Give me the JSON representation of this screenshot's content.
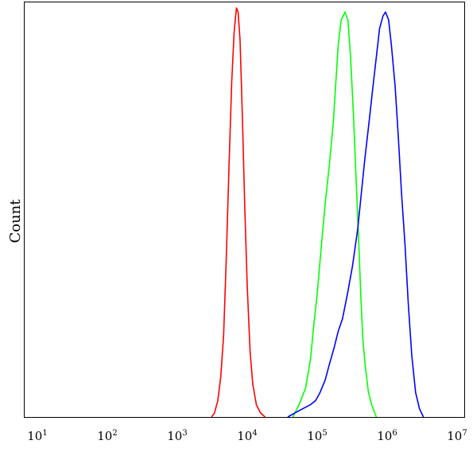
{
  "chart_data": {
    "type": "line",
    "title": "",
    "xlabel": "",
    "ylabel": "Count",
    "x_scale": "log",
    "x_range": [
      10,
      10000000
    ],
    "y_range": [
      0,
      100
    ],
    "grid": false,
    "legend": "none",
    "x_ticks": [
      {
        "value": 10,
        "base": "10",
        "exp": "1"
      },
      {
        "value": 100,
        "base": "10",
        "exp": "2"
      },
      {
        "value": 1000,
        "base": "10",
        "exp": "3"
      },
      {
        "value": 10000,
        "base": "10",
        "exp": "4"
      },
      {
        "value": 100000,
        "base": "10",
        "exp": "5"
      },
      {
        "value": 1000000,
        "base": "10",
        "exp": "6"
      },
      {
        "value": 10000000,
        "base": "10",
        "exp": "7"
      }
    ],
    "series": [
      {
        "color": "#ff0000",
        "points": [
          [
            3100,
            0
          ],
          [
            3400,
            1
          ],
          [
            3800,
            4
          ],
          [
            4200,
            10
          ],
          [
            4600,
            20
          ],
          [
            5000,
            38
          ],
          [
            5500,
            62
          ],
          [
            6000,
            82
          ],
          [
            6500,
            94
          ],
          [
            7000,
            100
          ],
          [
            7400,
            99
          ],
          [
            7900,
            92
          ],
          [
            8500,
            74
          ],
          [
            9200,
            52
          ],
          [
            10000,
            32
          ],
          [
            11000,
            16
          ],
          [
            12000,
            8
          ],
          [
            13500,
            3
          ],
          [
            15500,
            1
          ],
          [
            18000,
            0
          ]
        ]
      },
      {
        "color": "#00ff00",
        "points": [
          [
            45000,
            0
          ],
          [
            55000,
            3
          ],
          [
            68000,
            7
          ],
          [
            80000,
            14
          ],
          [
            90000,
            23
          ],
          [
            100000,
            30
          ],
          [
            115000,
            42
          ],
          [
            130000,
            52
          ],
          [
            150000,
            62
          ],
          [
            170000,
            72
          ],
          [
            185000,
            82
          ],
          [
            200000,
            91
          ],
          [
            220000,
            97
          ],
          [
            250000,
            99
          ],
          [
            275000,
            97
          ],
          [
            300000,
            88
          ],
          [
            330000,
            74
          ],
          [
            360000,
            58
          ],
          [
            390000,
            44
          ],
          [
            420000,
            30
          ],
          [
            450000,
            19
          ],
          [
            490000,
            12
          ],
          [
            540000,
            6
          ],
          [
            600000,
            3
          ],
          [
            700000,
            0
          ]
        ]
      },
      {
        "color": "#0000ff",
        "points": [
          [
            38000,
            0
          ],
          [
            48000,
            1
          ],
          [
            62000,
            2
          ],
          [
            80000,
            3
          ],
          [
            95000,
            4
          ],
          [
            110000,
            6
          ],
          [
            130000,
            9
          ],
          [
            150000,
            13
          ],
          [
            175000,
            17
          ],
          [
            200000,
            21
          ],
          [
            230000,
            24
          ],
          [
            270000,
            30
          ],
          [
            320000,
            37
          ],
          [
            380000,
            46
          ],
          [
            430000,
            55
          ],
          [
            480000,
            63
          ],
          [
            550000,
            72
          ],
          [
            620000,
            80
          ],
          [
            700000,
            88
          ],
          [
            780000,
            95
          ],
          [
            870000,
            98
          ],
          [
            950000,
            99
          ],
          [
            1050000,
            97
          ],
          [
            1150000,
            91
          ],
          [
            1300000,
            81
          ],
          [
            1450000,
            68
          ],
          [
            1600000,
            55
          ],
          [
            1800000,
            42
          ],
          [
            2000000,
            28
          ],
          [
            2250000,
            15
          ],
          [
            2550000,
            6
          ],
          [
            2900000,
            2
          ],
          [
            3300000,
            0
          ]
        ]
      }
    ]
  }
}
